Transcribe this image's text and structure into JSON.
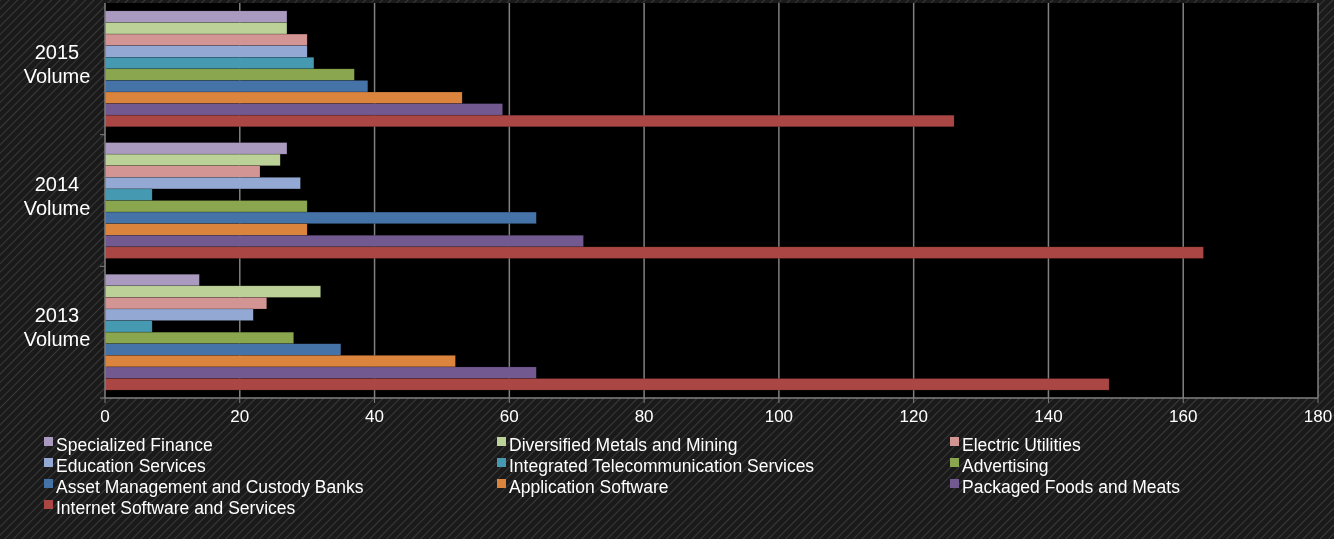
{
  "chart_data": {
    "type": "bar",
    "orientation": "horizontal",
    "categories": [
      "2015 Volume",
      "2014 Volume",
      "2013 Volume"
    ],
    "xlim": [
      0,
      180
    ],
    "xticks": [
      0,
      20,
      40,
      60,
      80,
      100,
      120,
      140,
      160,
      180
    ],
    "grid": "x",
    "legend": "bottom",
    "series": [
      {
        "name": "Specialized Finance",
        "color": "#ab9ac0",
        "values": [
          27,
          27,
          14
        ]
      },
      {
        "name": "Diversified Metals and Mining",
        "color": "#bcd197",
        "values": [
          27,
          26,
          32
        ]
      },
      {
        "name": "Electric Utilities",
        "color": "#d39593",
        "values": [
          30,
          23,
          24
        ]
      },
      {
        "name": "Education Services",
        "color": "#93a9d3",
        "values": [
          30,
          29,
          22
        ]
      },
      {
        "name": "Integrated Telecommunication Services",
        "color": "#4599b0",
        "values": [
          31,
          7,
          7
        ]
      },
      {
        "name": "Advertising",
        "color": "#8aa64e",
        "values": [
          37,
          30,
          28
        ]
      },
      {
        "name": "Asset Management and Custody Banks",
        "color": "#4673a7",
        "values": [
          39,
          64,
          35
        ]
      },
      {
        "name": "Application Software",
        "color": "#db843d",
        "values": [
          53,
          30,
          52
        ]
      },
      {
        "name": "Packaged Foods and Meats",
        "color": "#725990",
        "values": [
          59,
          71,
          64
        ]
      },
      {
        "name": "Internet Software and Services",
        "color": "#aa4744",
        "values": [
          126,
          163,
          149
        ]
      }
    ]
  }
}
